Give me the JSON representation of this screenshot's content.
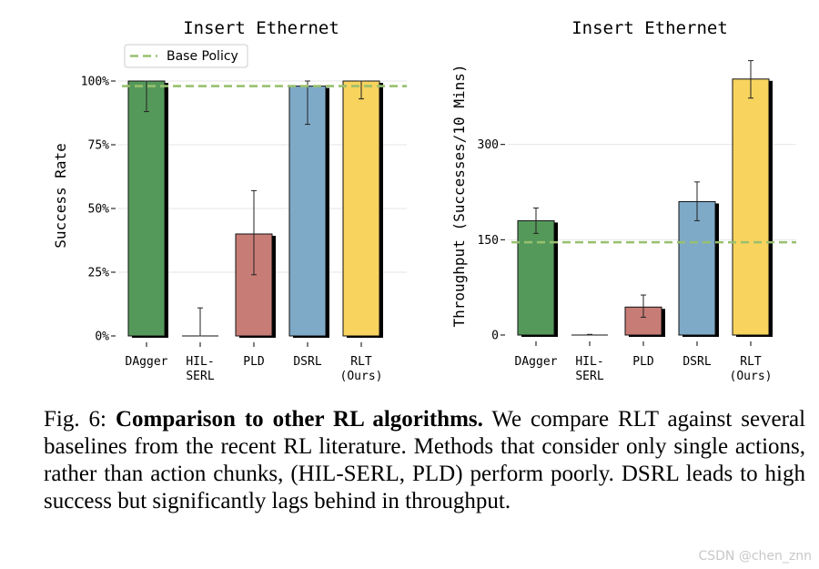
{
  "chart_data": [
    {
      "type": "bar",
      "title": "Insert Ethernet",
      "xlabel": "",
      "ylabel": "Success Rate",
      "categories": [
        [
          "DAgger"
        ],
        [
          "HIL-",
          "SERL"
        ],
        [
          "PLD"
        ],
        [
          "DSRL"
        ],
        [
          "RLT",
          "(Ours)"
        ]
      ],
      "values": [
        100,
        0,
        40,
        98,
        100
      ],
      "error_low": [
        88,
        0,
        24,
        83,
        93
      ],
      "error_high": [
        100,
        11,
        57,
        100,
        100
      ],
      "ylim": [
        0,
        110
      ],
      "yticks": [
        0,
        25,
        50,
        75,
        100
      ],
      "ytick_labels": [
        "0%",
        "25%",
        "50%",
        "75%",
        "100%"
      ],
      "baseline": {
        "name": "Base Policy",
        "value": 98
      },
      "legend": "top-left",
      "grid": "horizontal"
    },
    {
      "type": "bar",
      "title": "Insert Ethernet",
      "xlabel": "",
      "ylabel": "Throughput (Successes/10 Mins)",
      "categories": [
        [
          "DAgger"
        ],
        [
          "HIL-",
          "SERL"
        ],
        [
          "PLD"
        ],
        [
          "DSRL"
        ],
        [
          "RLT",
          "(Ours)"
        ]
      ],
      "values": [
        180,
        0,
        44,
        210,
        403
      ],
      "error_low": [
        160,
        0,
        28,
        180,
        373
      ],
      "error_high": [
        200,
        1,
        63,
        241,
        432
      ],
      "ylim": [
        0,
        440
      ],
      "yticks": [
        0,
        150,
        300
      ],
      "ytick_labels": [
        "0",
        "150",
        "300"
      ],
      "baseline": {
        "name": "Base Policy",
        "value": 146
      },
      "grid": "horizontal"
    }
  ],
  "colors": [
    "#55995a",
    "#55995a",
    "#c87c76",
    "#7eaac8",
    "#f8d35e"
  ],
  "baseline_color": "#98c06e",
  "caption": {
    "label": "Fig. 6: ",
    "bold": "Comparison to other RL algorithms.",
    "text": " We compare RLT against several baselines from the recent RL literature. Methods that consider only single actions, rather than action chunks, (HIL-SERL, PLD) perform poorly. DSRL leads to high success but significantly lags behind in throughput."
  },
  "watermark": "CSDN @chen_znn"
}
